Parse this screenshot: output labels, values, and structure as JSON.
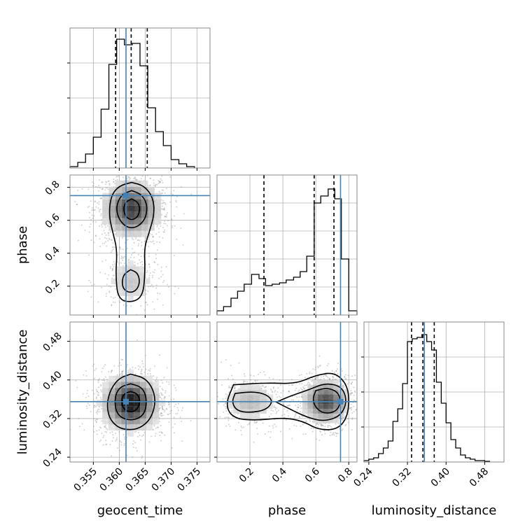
{
  "chart_data": {
    "type": "corner",
    "parameters": [
      "geocent_time",
      "phase",
      "luminosity_distance"
    ],
    "truth": {
      "geocent_time": 0.3613,
      "phase": 0.75,
      "luminosity_distance": 0.355
    },
    "colors": {
      "truth": "#4682b4",
      "hist": "#000000",
      "grid": "#b0b0b0"
    },
    "grid": true,
    "panels": [
      {
        "id": "hist-geocent_time",
        "type": "histogram",
        "param": "geocent_time",
        "xlim": [
          0.3505,
          0.3775
        ],
        "ylim": [
          0,
          1.0
        ],
        "xticks": [
          0.355,
          0.36,
          0.365,
          0.37,
          0.375
        ],
        "yticks": [
          0.25,
          0.5,
          0.75
        ],
        "quantiles": [
          0.3593,
          0.3623,
          0.3654
        ],
        "bins": [
          [
            0.3505,
            0.352,
            0.01
          ],
          [
            0.352,
            0.3535,
            0.04
          ],
          [
            0.3535,
            0.355,
            0.1
          ],
          [
            0.355,
            0.3565,
            0.22
          ],
          [
            0.3565,
            0.358,
            0.42
          ],
          [
            0.358,
            0.3595,
            0.74
          ],
          [
            0.3595,
            0.361,
            0.92
          ],
          [
            0.361,
            0.3625,
            0.88
          ],
          [
            0.3625,
            0.364,
            0.89
          ],
          [
            0.364,
            0.3655,
            0.73
          ],
          [
            0.3655,
            0.367,
            0.43
          ],
          [
            0.367,
            0.3685,
            0.26
          ],
          [
            0.3685,
            0.37,
            0.16
          ],
          [
            0.37,
            0.3715,
            0.06
          ],
          [
            0.3715,
            0.373,
            0.03
          ],
          [
            0.373,
            0.3745,
            0.01
          ]
        ],
        "truth_x": 0.3613
      },
      {
        "id": "hist-phase",
        "type": "histogram",
        "param": "phase",
        "xlim": [
          0.0,
          0.85
        ],
        "ylim": [
          0,
          1.0
        ],
        "xticks": [
          0.2,
          0.4,
          0.6,
          0.8
        ],
        "yticks": [
          0.2,
          0.4,
          0.6,
          0.8
        ],
        "quantiles": [
          0.285,
          0.59,
          0.71
        ],
        "bins": [
          [
            0.0,
            0.04,
            0.03
          ],
          [
            0.04,
            0.085,
            0.06
          ],
          [
            0.085,
            0.125,
            0.12
          ],
          [
            0.125,
            0.165,
            0.17
          ],
          [
            0.165,
            0.21,
            0.22
          ],
          [
            0.21,
            0.255,
            0.29
          ],
          [
            0.255,
            0.295,
            0.26
          ],
          [
            0.295,
            0.335,
            0.21
          ],
          [
            0.335,
            0.38,
            0.22
          ],
          [
            0.38,
            0.42,
            0.23
          ],
          [
            0.42,
            0.465,
            0.25
          ],
          [
            0.465,
            0.505,
            0.27
          ],
          [
            0.505,
            0.545,
            0.31
          ],
          [
            0.545,
            0.59,
            0.42
          ],
          [
            0.59,
            0.63,
            0.8
          ],
          [
            0.63,
            0.675,
            0.85
          ],
          [
            0.675,
            0.715,
            0.9
          ],
          [
            0.715,
            0.755,
            0.83
          ],
          [
            0.755,
            0.8,
            0.4
          ],
          [
            0.8,
            0.85,
            0.03
          ]
        ],
        "truth_x": 0.75
      },
      {
        "id": "hist-luminosity_distance",
        "type": "histogram",
        "param": "luminosity_distance",
        "xlim": [
          0.23,
          0.52
        ],
        "ylim": [
          0,
          1.0
        ],
        "xticks": [
          0.24,
          0.32,
          0.4,
          0.48
        ],
        "yticks": [
          0.25,
          0.5,
          0.75
        ],
        "quantiles": [
          0.3285,
          0.352,
          0.3755
        ],
        "bins": [
          [
            0.23,
            0.24,
            0.01
          ],
          [
            0.24,
            0.25,
            0.02
          ],
          [
            0.25,
            0.26,
            0.03
          ],
          [
            0.26,
            0.27,
            0.06
          ],
          [
            0.27,
            0.28,
            0.1
          ],
          [
            0.28,
            0.29,
            0.15
          ],
          [
            0.29,
            0.3,
            0.29
          ],
          [
            0.3,
            0.31,
            0.38
          ],
          [
            0.31,
            0.32,
            0.56
          ],
          [
            0.32,
            0.33,
            0.86
          ],
          [
            0.33,
            0.34,
            0.88
          ],
          [
            0.34,
            0.35,
            0.89
          ],
          [
            0.35,
            0.36,
            0.91
          ],
          [
            0.36,
            0.37,
            0.86
          ],
          [
            0.37,
            0.38,
            0.8
          ],
          [
            0.38,
            0.39,
            0.57
          ],
          [
            0.39,
            0.4,
            0.42
          ],
          [
            0.4,
            0.41,
            0.28
          ],
          [
            0.41,
            0.42,
            0.16
          ],
          [
            0.42,
            0.43,
            0.1
          ],
          [
            0.43,
            0.44,
            0.05
          ],
          [
            0.44,
            0.45,
            0.03
          ],
          [
            0.45,
            0.46,
            0.02
          ],
          [
            0.46,
            0.47,
            0.01
          ],
          [
            0.47,
            0.48,
            0.01
          ],
          [
            0.48,
            0.49,
            0.005
          ]
        ],
        "truth_x": 0.355
      },
      {
        "id": "scatter-geocent_time-phase",
        "type": "density",
        "xparam": "geocent_time",
        "yparam": "phase",
        "xlim": [
          0.3505,
          0.3775
        ],
        "ylim": [
          0.025,
          0.875
        ],
        "xticks": [
          0.355,
          0.36,
          0.365,
          0.37,
          0.375
        ],
        "yticks": [
          0.2,
          0.4,
          0.6,
          0.8
        ],
        "modes": [
          {
            "cx": 0.3624,
            "cy": 0.67,
            "sx": 0.0028,
            "sy": 0.085,
            "w": 0.8
          },
          {
            "cx": 0.3622,
            "cy": 0.23,
            "sx": 0.0024,
            "sy": 0.08,
            "w": 0.2
          }
        ],
        "contours": [
          [
            [
              0.3624,
              0.83
            ],
            [
              0.3648,
              0.81
            ],
            [
              0.3665,
              0.74
            ],
            [
              0.3668,
              0.64
            ],
            [
              0.3658,
              0.53
            ],
            [
              0.3648,
              0.43
            ],
            [
              0.365,
              0.3
            ],
            [
              0.3646,
              0.14
            ],
            [
              0.3624,
              0.1
            ],
            [
              0.3598,
              0.12
            ],
            [
              0.3593,
              0.26
            ],
            [
              0.3596,
              0.42
            ],
            [
              0.3588,
              0.52
            ],
            [
              0.358,
              0.63
            ],
            [
              0.3584,
              0.75
            ],
            [
              0.36,
              0.81
            ]
          ],
          [
            [
              0.3624,
              0.78
            ],
            [
              0.3642,
              0.76
            ],
            [
              0.3654,
              0.7
            ],
            [
              0.3652,
              0.62
            ],
            [
              0.364,
              0.57
            ],
            [
              0.3624,
              0.55
            ],
            [
              0.3608,
              0.57
            ],
            [
              0.3596,
              0.63
            ],
            [
              0.3595,
              0.7
            ],
            [
              0.3606,
              0.76
            ]
          ],
          [
            [
              0.3624,
              0.73
            ],
            [
              0.3636,
              0.71
            ],
            [
              0.364,
              0.67
            ],
            [
              0.3636,
              0.62
            ],
            [
              0.3624,
              0.6
            ],
            [
              0.3612,
              0.62
            ],
            [
              0.3608,
              0.67
            ],
            [
              0.3612,
              0.71
            ]
          ],
          [
            [
              0.3622,
              0.3
            ],
            [
              0.3636,
              0.28
            ],
            [
              0.364,
              0.22
            ],
            [
              0.3632,
              0.17
            ],
            [
              0.3618,
              0.16
            ],
            [
              0.3606,
              0.19
            ],
            [
              0.3606,
              0.25
            ],
            [
              0.3612,
              0.28
            ]
          ]
        ],
        "truth": [
          0.3613,
          0.75
        ]
      },
      {
        "id": "scatter-geocent_time-luminosity_distance",
        "type": "density",
        "xparam": "geocent_time",
        "yparam": "luminosity_distance",
        "xlim": [
          0.3505,
          0.3775
        ],
        "ylim": [
          0.23,
          0.52
        ],
        "xticks": [
          0.355,
          0.36,
          0.365,
          0.37,
          0.375
        ],
        "yticks": [
          0.24,
          0.32,
          0.4,
          0.48
        ],
        "modes": [
          {
            "cx": 0.3622,
            "cy": 0.352,
            "sx": 0.0027,
            "sy": 0.028,
            "w": 1.0
          }
        ],
        "contours": [
          [
            [
              0.3622,
              0.412
            ],
            [
              0.365,
              0.404
            ],
            [
              0.3666,
              0.38
            ],
            [
              0.367,
              0.35
            ],
            [
              0.366,
              0.318
            ],
            [
              0.364,
              0.3
            ],
            [
              0.3618,
              0.296
            ],
            [
              0.3596,
              0.302
            ],
            [
              0.358,
              0.322
            ],
            [
              0.3576,
              0.352
            ],
            [
              0.3584,
              0.382
            ],
            [
              0.36,
              0.404
            ]
          ],
          [
            [
              0.3622,
              0.392
            ],
            [
              0.3642,
              0.386
            ],
            [
              0.3652,
              0.368
            ],
            [
              0.3652,
              0.34
            ],
            [
              0.3642,
              0.322
            ],
            [
              0.3622,
              0.316
            ],
            [
              0.3602,
              0.322
            ],
            [
              0.3592,
              0.34
            ],
            [
              0.3592,
              0.368
            ],
            [
              0.3602,
              0.386
            ]
          ],
          [
            [
              0.3622,
              0.376
            ],
            [
              0.3634,
              0.372
            ],
            [
              0.364,
              0.36
            ],
            [
              0.3638,
              0.344
            ],
            [
              0.3628,
              0.334
            ],
            [
              0.3616,
              0.334
            ],
            [
              0.3606,
              0.344
            ],
            [
              0.3604,
              0.36
            ],
            [
              0.361,
              0.372
            ]
          ]
        ],
        "truth": [
          0.3613,
          0.355
        ]
      },
      {
        "id": "scatter-phase-luminosity_distance",
        "type": "density",
        "xparam": "phase",
        "yparam": "luminosity_distance",
        "xlim": [
          0.0,
          0.85
        ],
        "ylim": [
          0.23,
          0.52
        ],
        "xticks": [
          0.2,
          0.4,
          0.6,
          0.8
        ],
        "yticks": [
          0.24,
          0.32,
          0.4,
          0.48
        ],
        "modes": [
          {
            "cx": 0.66,
            "cy": 0.355,
            "sx": 0.07,
            "sy": 0.022,
            "w": 0.75
          },
          {
            "cx": 0.2,
            "cy": 0.355,
            "sx": 0.09,
            "sy": 0.022,
            "w": 0.25
          }
        ],
        "contours": [
          [
            [
              0.1,
              0.39
            ],
            [
              0.3,
              0.394
            ],
            [
              0.48,
              0.392
            ],
            [
              0.6,
              0.41
            ],
            [
              0.72,
              0.416
            ],
            [
              0.8,
              0.385
            ],
            [
              0.8,
              0.33
            ],
            [
              0.74,
              0.298
            ],
            [
              0.62,
              0.296
            ],
            [
              0.52,
              0.315
            ],
            [
              0.4,
              0.322
            ],
            [
              0.24,
              0.316
            ],
            [
              0.1,
              0.32
            ],
            [
              0.05,
              0.348
            ]
          ],
          [
            [
              0.11,
              0.372
            ],
            [
              0.22,
              0.376
            ],
            [
              0.3,
              0.37
            ],
            [
              0.34,
              0.356
            ],
            [
              0.3,
              0.338
            ],
            [
              0.2,
              0.332
            ],
            [
              0.12,
              0.336
            ],
            [
              0.09,
              0.354
            ]
          ],
          [
            [
              0.36,
              0.354
            ],
            [
              0.44,
              0.366
            ],
            [
              0.56,
              0.38
            ],
            [
              0.66,
              0.394
            ],
            [
              0.76,
              0.386
            ],
            [
              0.79,
              0.355
            ],
            [
              0.75,
              0.325
            ],
            [
              0.65,
              0.314
            ],
            [
              0.55,
              0.322
            ],
            [
              0.44,
              0.34
            ]
          ],
          [
            [
              0.6,
              0.378
            ],
            [
              0.67,
              0.384
            ],
            [
              0.74,
              0.374
            ],
            [
              0.75,
              0.35
            ],
            [
              0.72,
              0.334
            ],
            [
              0.65,
              0.33
            ],
            [
              0.6,
              0.342
            ],
            [
              0.58,
              0.36
            ]
          ]
        ],
        "truth": [
          0.75,
          0.355
        ]
      }
    ],
    "labels": {
      "geocent_time": "geocent_time",
      "phase": "phase",
      "luminosity_distance": "luminosity_distance"
    },
    "tick_labels": {
      "geocent_time": [
        "0.355",
        "0.360",
        "0.365",
        "0.370",
        "0.375"
      ],
      "phase": [
        "0.2",
        "0.4",
        "0.6",
        "0.8"
      ],
      "luminosity_distance": [
        "0.24",
        "0.32",
        "0.40",
        "0.48"
      ]
    }
  }
}
